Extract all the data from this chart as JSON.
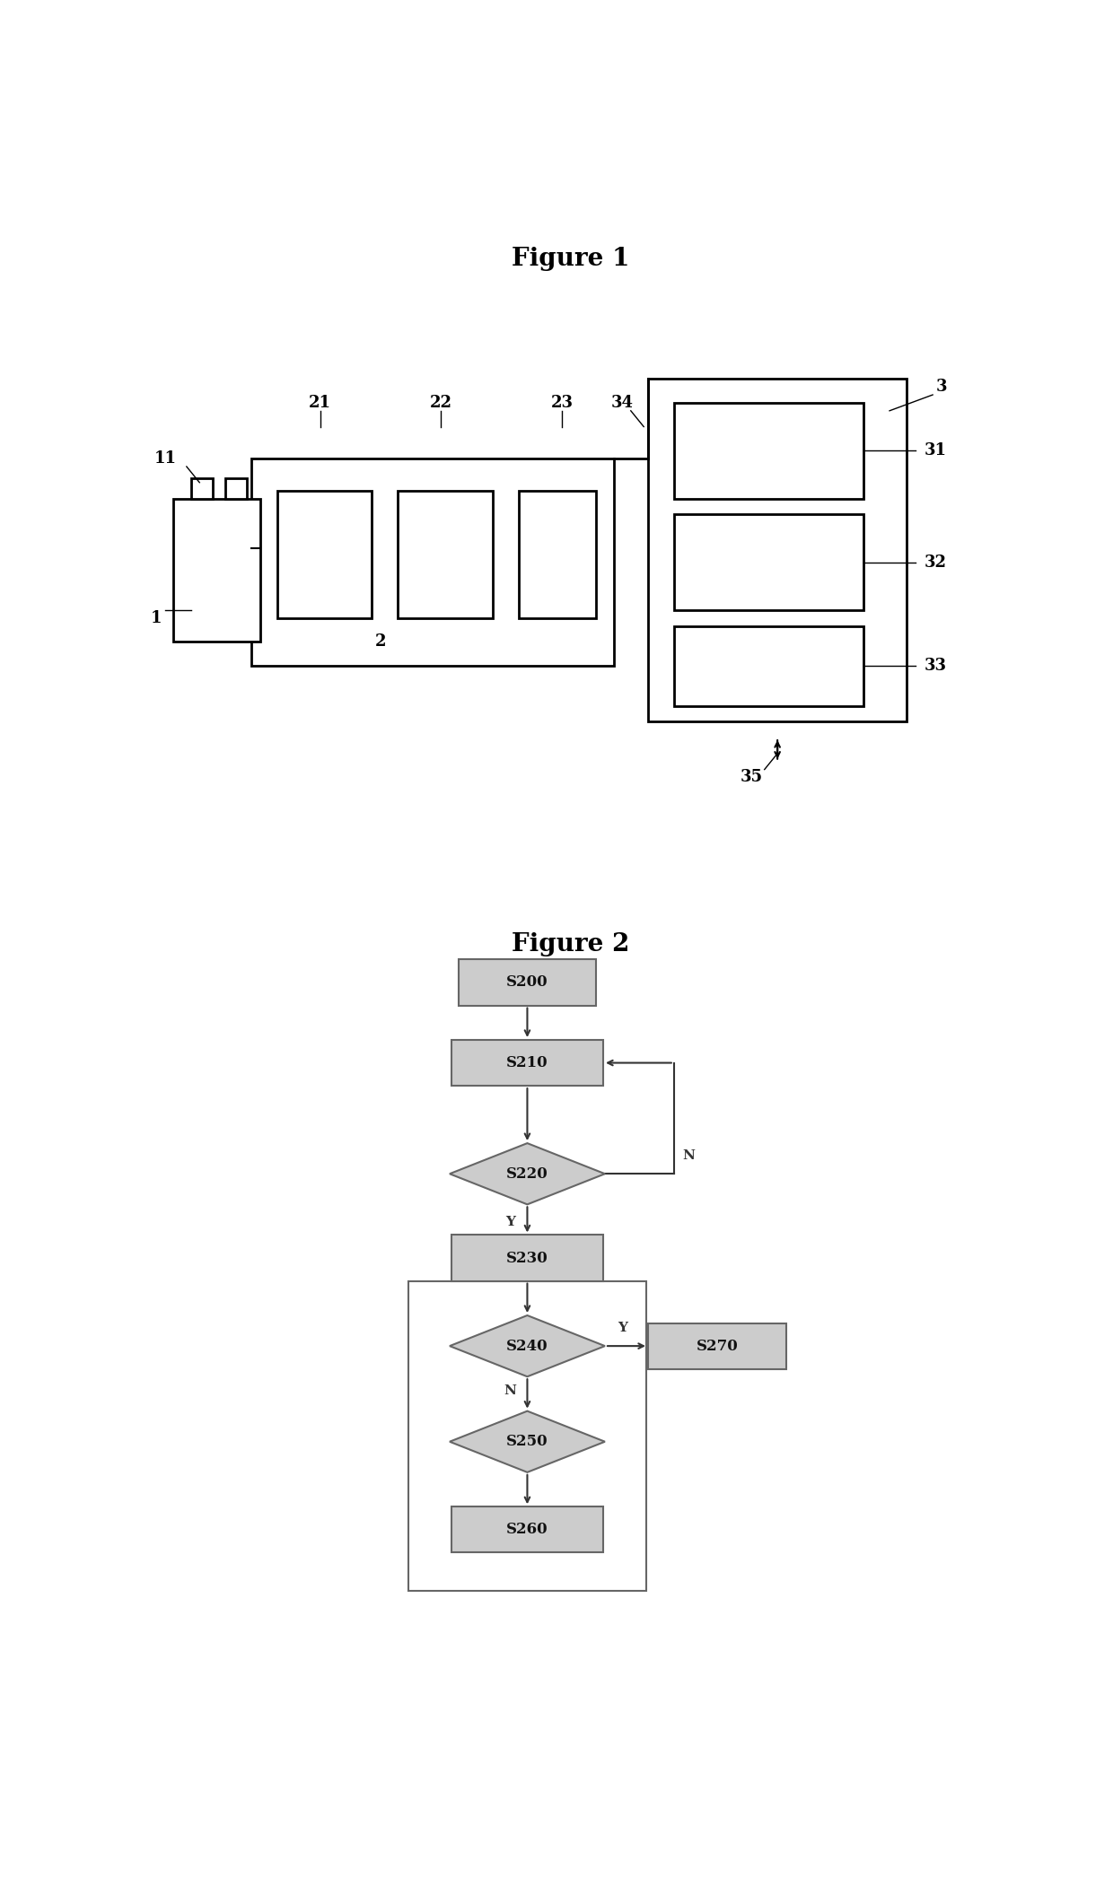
{
  "fig1_title": "Figure 1",
  "fig2_title": "Figure 2",
  "background_color": "#ffffff",
  "line_color": "#000000",
  "fig1": {
    "label1": "1",
    "label11": "11",
    "label2": "2",
    "label21": "21",
    "label22": "22",
    "label23": "23",
    "label3": "3",
    "label31": "31",
    "label32": "32",
    "label33": "33",
    "label34": "34",
    "label35": "35"
  },
  "fig2": {
    "node_fc": "#cccccc",
    "node_ec": "#666666",
    "arrow_color": "#333333",
    "label_color": "#333333"
  }
}
